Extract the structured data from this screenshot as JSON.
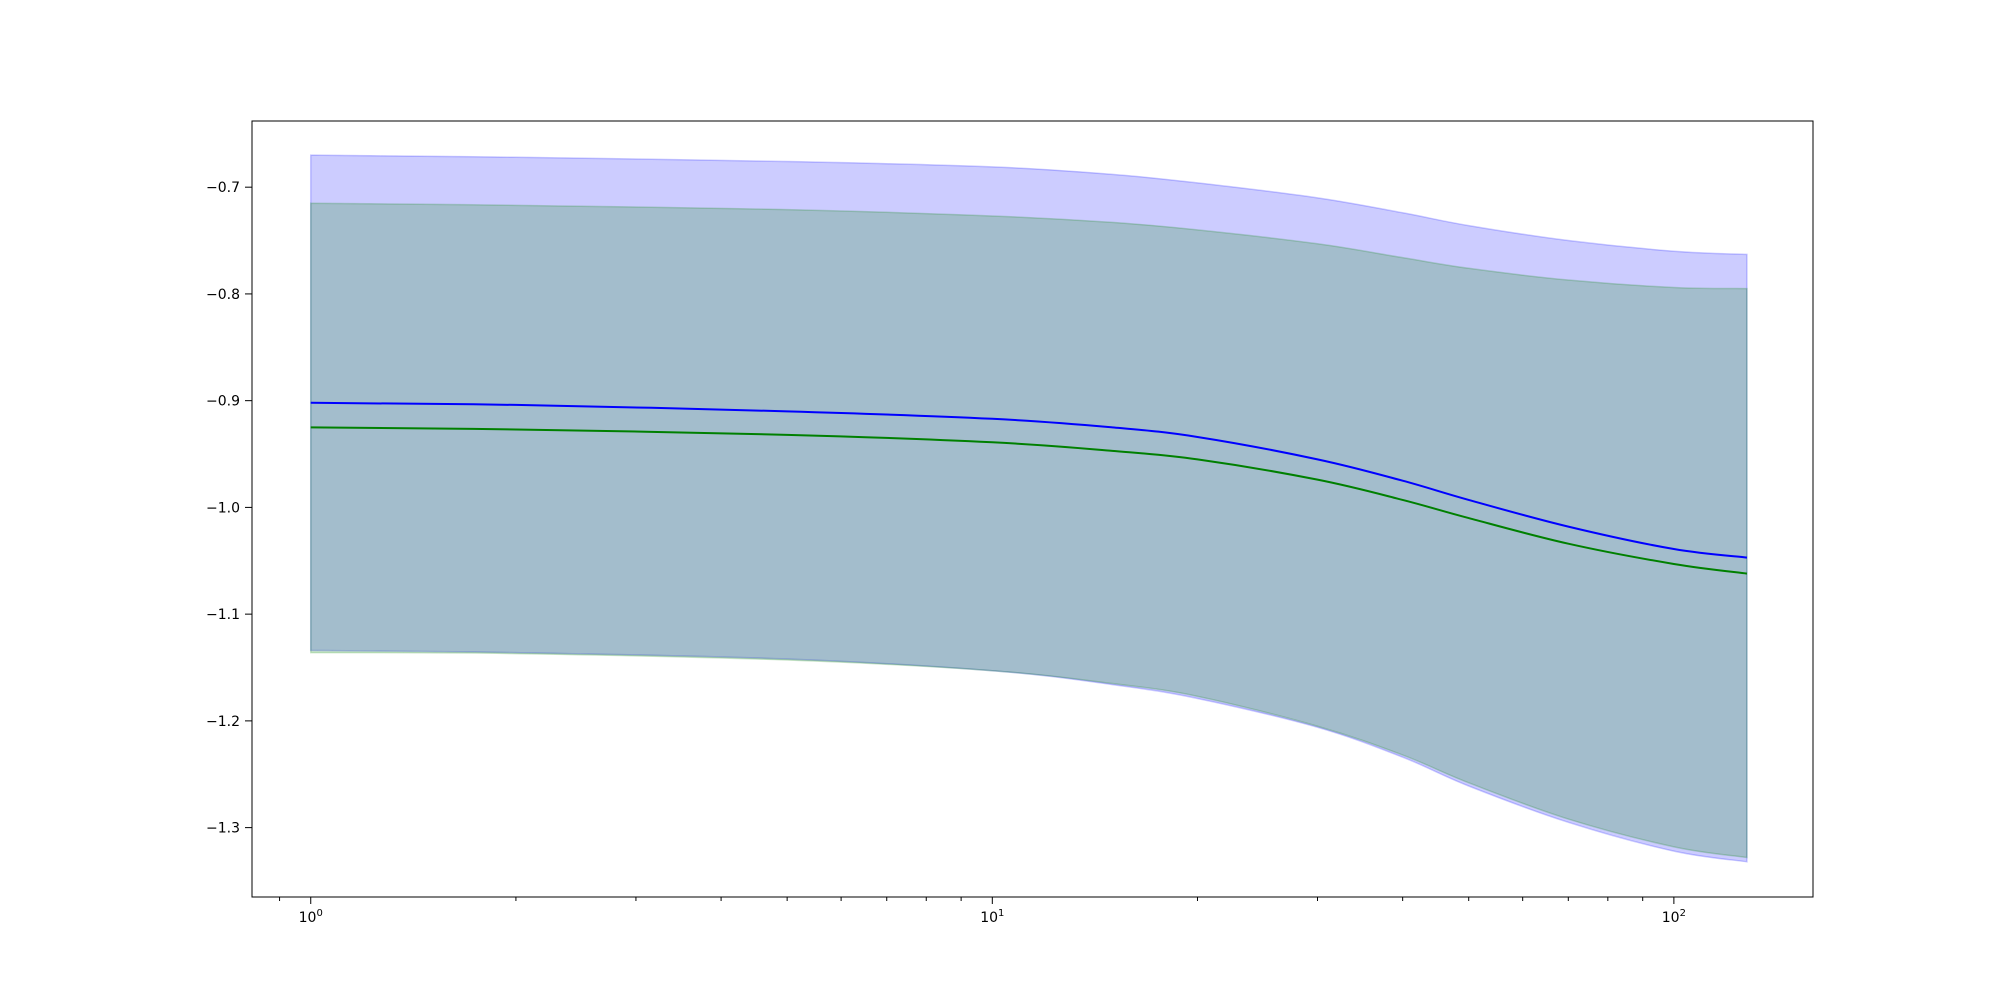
{
  "chart_data": {
    "type": "area",
    "title": "",
    "xlabel": "",
    "ylabel": "",
    "x_scale": "log",
    "xlim": [
      0.82,
      160
    ],
    "ylim": [
      -1.365,
      -0.638
    ],
    "grid": false,
    "legend": "none",
    "x_ticks": [
      1,
      10,
      100
    ],
    "x_tick_labels": [
      {
        "base": "10",
        "exp": "0"
      },
      {
        "base": "10",
        "exp": "1"
      },
      {
        "base": "10",
        "exp": "2"
      }
    ],
    "y_ticks": [
      -0.7,
      -0.8,
      -0.9,
      -1.0,
      -1.1,
      -1.2,
      -1.3
    ],
    "y_tick_labels": [
      "−0.7",
      "−0.8",
      "−0.9",
      "−1.0",
      "−1.1",
      "−1.2",
      "−1.3"
    ],
    "x": [
      1,
      2,
      5,
      10,
      15,
      20,
      30,
      40,
      50,
      70,
      100,
      128
    ],
    "series": [
      {
        "color": "#0000ff",
        "line_color": "#0000ff",
        "fill_color": "#0000ff",
        "fill_opacity": 0.2,
        "values": [
          -0.902,
          -0.904,
          -0.91,
          -0.917,
          -0.925,
          -0.934,
          -0.955,
          -0.975,
          -0.993,
          -1.018,
          -1.039,
          -1.047
        ],
        "band_upper": [
          -0.67,
          -0.672,
          -0.676,
          -0.681,
          -0.688,
          -0.696,
          -0.71,
          -0.724,
          -0.736,
          -0.75,
          -0.76,
          -0.763
        ],
        "band_lower": [
          -1.134,
          -1.136,
          -1.142,
          -1.153,
          -1.166,
          -1.179,
          -1.206,
          -1.234,
          -1.261,
          -1.295,
          -1.322,
          -1.332
        ]
      },
      {
        "color": "#008000",
        "line_color": "#008000",
        "fill_color": "#008000",
        "fill_opacity": 0.2,
        "values": [
          -0.925,
          -0.927,
          -0.932,
          -0.939,
          -0.947,
          -0.955,
          -0.974,
          -0.993,
          -1.01,
          -1.034,
          -1.053,
          -1.062
        ],
        "band_upper": [
          -0.715,
          -0.717,
          -0.721,
          -0.727,
          -0.733,
          -0.74,
          -0.753,
          -0.766,
          -0.776,
          -0.787,
          -0.794,
          -0.795
        ],
        "band_lower": [
          -1.136,
          -1.137,
          -1.143,
          -1.153,
          -1.165,
          -1.177,
          -1.205,
          -1.232,
          -1.258,
          -1.292,
          -1.318,
          -1.328
        ]
      }
    ]
  }
}
